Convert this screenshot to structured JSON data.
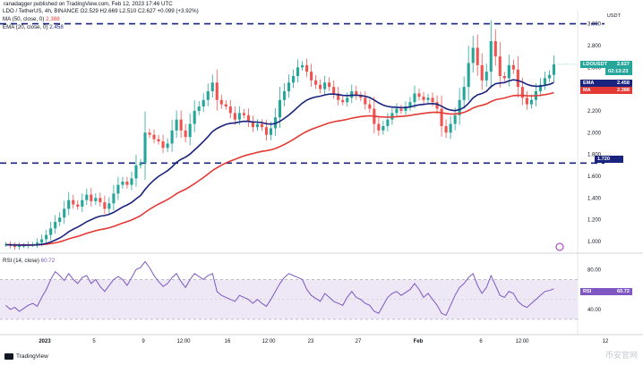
{
  "header": {
    "author": "ranadagger published on TradingView.com, Feb 12, 2023 17:46 UTC",
    "symbol_line": "LDO / TetherUS, 4h, BINANCE  O2.529  H2.669  L2.510  C2.627  +0.099 (+3.92%)",
    "ma_label": "MA (50, close, 0)",
    "ma_value": "2.388",
    "ema_label": "EMA (20, close, 0)",
    "ema_value": "2.458",
    "rsi_label": "RSI (14, close)",
    "rsi_value": "60.72"
  },
  "tags": {
    "usdt": "USDT",
    "price_symbol": "LDOUSDT",
    "price_value": "2.627",
    "countdown": "02:13:23",
    "ema_name": "EMA",
    "ema_value": "2.458",
    "ma_name": "MA",
    "ma_value": "2.388",
    "support": "1.720",
    "rsi_name": "RSI",
    "rsi_value": "60.72"
  },
  "footer": {
    "brand": "TradingView",
    "watermark": "币安官网"
  },
  "colors": {
    "up": "#26a69a",
    "down": "#ef5350",
    "ema": "#1a237e",
    "ma": "#e53935",
    "rsi": "#7e57c2",
    "rsi_band": "#ede7f6",
    "price_tag": "#26a69a",
    "level_line": "#1a237e"
  },
  "chart_data": [
    {
      "type": "candlestick",
      "symbol": "LDOUSDT",
      "yaxis_ticks": [
        "3.000",
        "2.800",
        "2.600",
        "2.400",
        "2.200",
        "2.000",
        "1.800",
        "1.600",
        "1.400",
        "1.200",
        "1.000"
      ],
      "yaxis_values": [
        3.0,
        2.8,
        2.6,
        2.4,
        2.2,
        2.0,
        1.8,
        1.6,
        1.4,
        1.2,
        1.0
      ],
      "ylim": [
        0.95,
        3.12
      ],
      "xaxis_ticks": [
        "2023",
        "5",
        "9",
        "12:00",
        "16",
        "12:00",
        "23",
        "27",
        "Feb",
        "6",
        "12:00",
        "12"
      ],
      "horizontal_levels": [
        3.0,
        1.72
      ],
      "last_price": 2.627,
      "ema20_last": 2.458,
      "ma50_last": 2.388,
      "close_path": [
        0.97,
        0.96,
        0.95,
        0.96,
        0.96,
        0.97,
        0.97,
        0.99,
        1.02,
        1.06,
        1.12,
        1.18,
        1.22,
        1.3,
        1.38,
        1.34,
        1.32,
        1.38,
        1.43,
        1.37,
        1.4,
        1.36,
        1.3,
        1.35,
        1.44,
        1.52,
        1.55,
        1.52,
        1.58,
        1.7,
        1.72,
        2.0,
        1.98,
        1.94,
        1.92,
        1.86,
        1.9,
        2.02,
        2.12,
        2.02,
        1.96,
        2.08,
        2.2,
        2.24,
        2.3,
        2.38,
        2.46,
        2.3,
        2.26,
        2.24,
        2.18,
        2.12,
        2.18,
        2.16,
        2.1,
        2.05,
        2.08,
        2.05,
        1.98,
        2.04,
        2.14,
        2.3,
        2.38,
        2.46,
        2.52,
        2.6,
        2.62,
        2.56,
        2.48,
        2.44,
        2.4,
        2.46,
        2.42,
        2.36,
        2.3,
        2.28,
        2.32,
        2.38,
        2.34,
        2.32,
        2.26,
        2.22,
        2.08,
        2.02,
        2.06,
        2.12,
        2.18,
        2.22,
        2.2,
        2.24,
        2.28,
        2.36,
        2.33,
        2.3,
        2.32,
        2.28,
        2.22,
        2.06,
        2.0,
        2.08,
        2.16,
        2.3,
        2.42,
        2.64,
        2.78,
        2.62,
        2.48,
        2.56,
        2.84,
        2.7,
        2.52,
        2.5,
        2.62,
        2.58,
        2.42,
        2.32,
        2.26,
        2.3,
        2.38,
        2.44,
        2.5,
        2.53,
        2.627
      ],
      "rsi": {
        "levels": [
          70,
          30,
          50
        ],
        "yaxis_ticks": [
          "80.00",
          "40.00"
        ],
        "yaxis_values": [
          80,
          40
        ],
        "ylim": [
          20,
          92
        ],
        "last": 60.72,
        "values": [
          44,
          40,
          42,
          38,
          41,
          44,
          46,
          43,
          52,
          60,
          70,
          78,
          74,
          69,
          76,
          70,
          66,
          72,
          74,
          66,
          70,
          63,
          58,
          64,
          70,
          73,
          70,
          64,
          72,
          80,
          82,
          88,
          82,
          74,
          68,
          63,
          66,
          72,
          76,
          68,
          62,
          70,
          76,
          73,
          70,
          74,
          76,
          58,
          54,
          52,
          50,
          48,
          54,
          52,
          50,
          46,
          50,
          46,
          43,
          50,
          58,
          66,
          72,
          76,
          74,
          72,
          70,
          60,
          54,
          51,
          48,
          56,
          52,
          48,
          46,
          44,
          52,
          58,
          52,
          50,
          46,
          44,
          38,
          36,
          44,
          52,
          56,
          58,
          54,
          57,
          60,
          66,
          60,
          52,
          56,
          50,
          44,
          36,
          34,
          44,
          54,
          62,
          66,
          72,
          76,
          64,
          56,
          62,
          74,
          64,
          54,
          52,
          58,
          56,
          48,
          44,
          42,
          46,
          50,
          54,
          58,
          59,
          60.72
        ]
      }
    }
  ]
}
